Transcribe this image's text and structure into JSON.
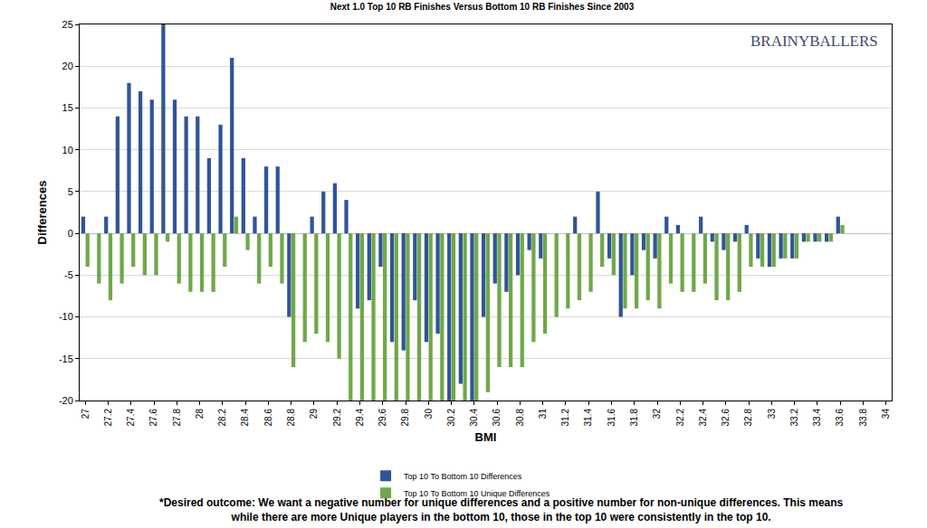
{
  "chart_data": {
    "type": "bar",
    "title": "Next 1.0 Top 10 RB Finishes Versus Bottom 10 RB Finishes Since 2003",
    "x_label": "BMI",
    "y_label": "Differences",
    "annotations": [
      "BRAINYBALLERS",
      "*Desired outcome: We want a negative number for unique differences and a positive number for non-unique differences. This means",
      "while there are more Unique players in the bottom 10, those in the top 10 were consistently in the top 10."
    ],
    "categories": [
      "27",
      null,
      "27.2",
      null,
      "27.4",
      null,
      "27.6",
      null,
      "27.8",
      null,
      "28",
      null,
      "28.2",
      null,
      "28.4",
      null,
      "28.6",
      null,
      "28.8",
      null,
      "29",
      null,
      "29.2",
      null,
      "29.4",
      null,
      "29.6",
      null,
      "29.8",
      null,
      "30",
      null,
      "30.2",
      null,
      "30.4",
      null,
      "30.6",
      null,
      "30.8",
      null,
      "31",
      null,
      "31.2",
      null,
      "31.4",
      null,
      "31.6",
      null,
      "31.8",
      null,
      "32",
      null,
      "32.2",
      null,
      "32.4",
      null,
      "32.6",
      null,
      "32.8",
      null,
      "33",
      null,
      "33.2",
      null,
      "33.4",
      null,
      "33.6",
      null,
      "33.8",
      null,
      "34"
    ],
    "series": [
      {
        "name": "Top 10 To Bottom 10 Differences",
        "color": "#2f5597",
        "values": [
          2,
          0,
          2,
          14,
          18,
          17,
          16,
          25,
          16,
          14,
          14,
          9,
          13,
          21,
          9,
          2,
          8,
          8,
          -10,
          0,
          2,
          5,
          6,
          4,
          -9,
          -8,
          -4,
          -13,
          -14,
          -8,
          -13,
          -12,
          -20,
          -18,
          -20,
          -10,
          -6,
          -7,
          -5,
          -2,
          -3,
          0,
          0,
          2,
          0,
          5,
          -3,
          -10,
          -5,
          -2,
          -3,
          2,
          1,
          0,
          2,
          -1,
          -2,
          -1,
          1,
          -3,
          -4,
          -3,
          -3,
          -1,
          -1,
          -1,
          2,
          0,
          0,
          0,
          0
        ]
      },
      {
        "name": "Top 10 To Bottom 10 Unique Differences",
        "color": "#6fa84a",
        "values": [
          -4,
          -6,
          -8,
          -6,
          -4,
          -5,
          -5,
          -1,
          -6,
          -7,
          -7,
          -7,
          -4,
          2,
          -2,
          -6,
          -4,
          -6,
          -16,
          -13,
          -12,
          -13,
          -15,
          -20,
          -20,
          -20,
          -20,
          -20,
          -20,
          -20,
          -20,
          -20,
          -20,
          -20,
          -20,
          -19,
          -16,
          -16,
          -16,
          -13,
          -12,
          -10,
          -9,
          -8,
          -7,
          -4,
          -5,
          -9,
          -9,
          -8,
          -9,
          -6,
          -7,
          -7,
          -6,
          -8,
          -8,
          -7,
          -4,
          -4,
          -4,
          -3,
          -3,
          -1,
          -1,
          -1,
          1,
          0,
          0,
          0,
          0
        ]
      }
    ],
    "ylim": [
      -20,
      25
    ],
    "yticks": [
      -20,
      -15,
      -10,
      -5,
      0,
      5,
      10,
      15,
      20,
      25
    ],
    "grid": true,
    "legend": "bottom"
  }
}
